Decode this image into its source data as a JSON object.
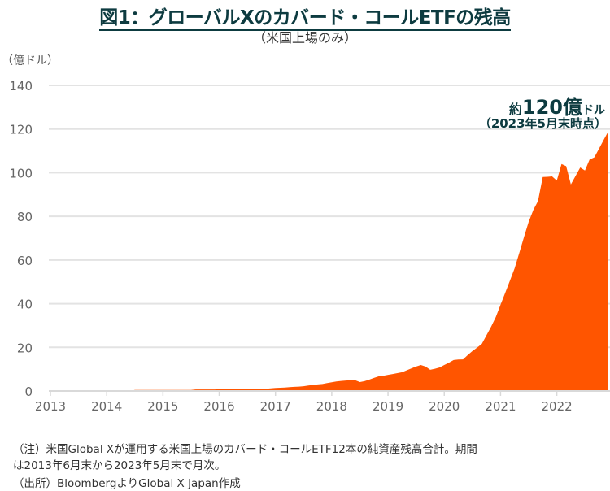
{
  "title": "図1：グローバルXのカバード・コールETFの残高",
  "subtitle": "（米国上場のみ）",
  "annotation": {
    "prefix": "約",
    "value": "120億",
    "unit": "ドル",
    "date": "（2023年5月末時点）"
  },
  "notes": [
    "（注）米国Global Xが運用する米国上場のカバード・コールETF12本の純資産残高合計。期間",
    "は2013年6月末から2023年5月末で月次。",
    "（出所）BloombergよりGlobal X Japan作成"
  ],
  "colors": {
    "fill": "#ff5500",
    "title": "#0d3b40",
    "grid": "#e3e3e3"
  },
  "chart_data": {
    "type": "area",
    "title": "図1：グローバルXのカバード・コールETFの残高",
    "ylabel": "（億ドル）",
    "xlabel": "",
    "start_month": "2013-06",
    "frequency": "monthly",
    "ylim": [
      0,
      140
    ],
    "yticks": [
      0,
      20,
      40,
      60,
      80,
      100,
      120,
      140
    ],
    "xticks": [
      {
        "label": "2013",
        "month_index": 0
      },
      {
        "label": "2014",
        "month_index": 12
      },
      {
        "label": "2015",
        "month_index": 24
      },
      {
        "label": "2016",
        "month_index": 36
      },
      {
        "label": "2017",
        "month_index": 48
      },
      {
        "label": "2018",
        "month_index": 60
      },
      {
        "label": "2019",
        "month_index": 72
      },
      {
        "label": "2020",
        "month_index": 84
      },
      {
        "label": "2021",
        "month_index": 96
      },
      {
        "label": "2022",
        "month_index": 108
      }
    ],
    "grid": true,
    "values": [
      0,
      0,
      0,
      0,
      0,
      0,
      0,
      0,
      0,
      0,
      0,
      0,
      0,
      0,
      0,
      0,
      0,
      0,
      0.5,
      0.5,
      0.5,
      0.5,
      0.5,
      0.5,
      0.5,
      0.5,
      0.5,
      0.5,
      0.5,
      0.5,
      0.5,
      0.7,
      0.7,
      0.7,
      0.7,
      0.7,
      0.8,
      0.8,
      0.8,
      0.8,
      0.8,
      0.9,
      0.9,
      0.9,
      0.9,
      0.9,
      1.0,
      1.2,
      1.4,
      1.5,
      1.6,
      1.8,
      1.9,
      2.0,
      2.2,
      2.5,
      2.8,
      3.0,
      3.2,
      3.6,
      4.0,
      4.4,
      4.6,
      4.8,
      4.9,
      4.9,
      4.1,
      4.5,
      5.2,
      6.0,
      6.7,
      7.0,
      7.4,
      7.8,
      8.2,
      8.6,
      9.5,
      10.4,
      11.2,
      11.9,
      11.2,
      9.7,
      10.2,
      10.8,
      11.9,
      13.0,
      14.2,
      14.4,
      14.5,
      16.5,
      18.3,
      19.9,
      21.6,
      25.5,
      29.5,
      33.9,
      39.5,
      45.0,
      50.5,
      56.2,
      63.3,
      70.5,
      77.5,
      83.0,
      87.0,
      98.0,
      98.1,
      98.3,
      96.4,
      104.0,
      103.0,
      94.6,
      98.5,
      102.4,
      101.0,
      106.0,
      107.0,
      111.0,
      115.0,
      119.0
    ]
  }
}
